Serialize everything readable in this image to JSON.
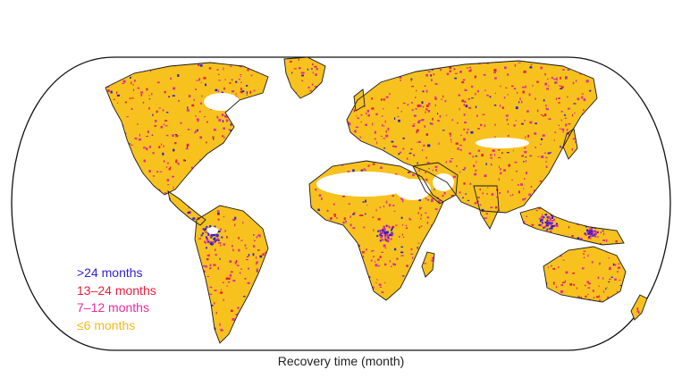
{
  "caption": "Recovery time (month)",
  "legend": [
    {
      "label": ">24 months",
      "color": "#2b1fd6"
    },
    {
      "label": "13–24 months",
      "color": "#e8203c"
    },
    {
      "label": "7–12 months",
      "color": "#e62c9c"
    },
    {
      "label": "≤6 months",
      "color": "#f5b81c"
    }
  ],
  "colors": {
    "land": "#f7c21e",
    "frame_stroke": "#111111",
    "coast_stroke": "#1a1a1a",
    "no_data": "#ffffff"
  }
}
